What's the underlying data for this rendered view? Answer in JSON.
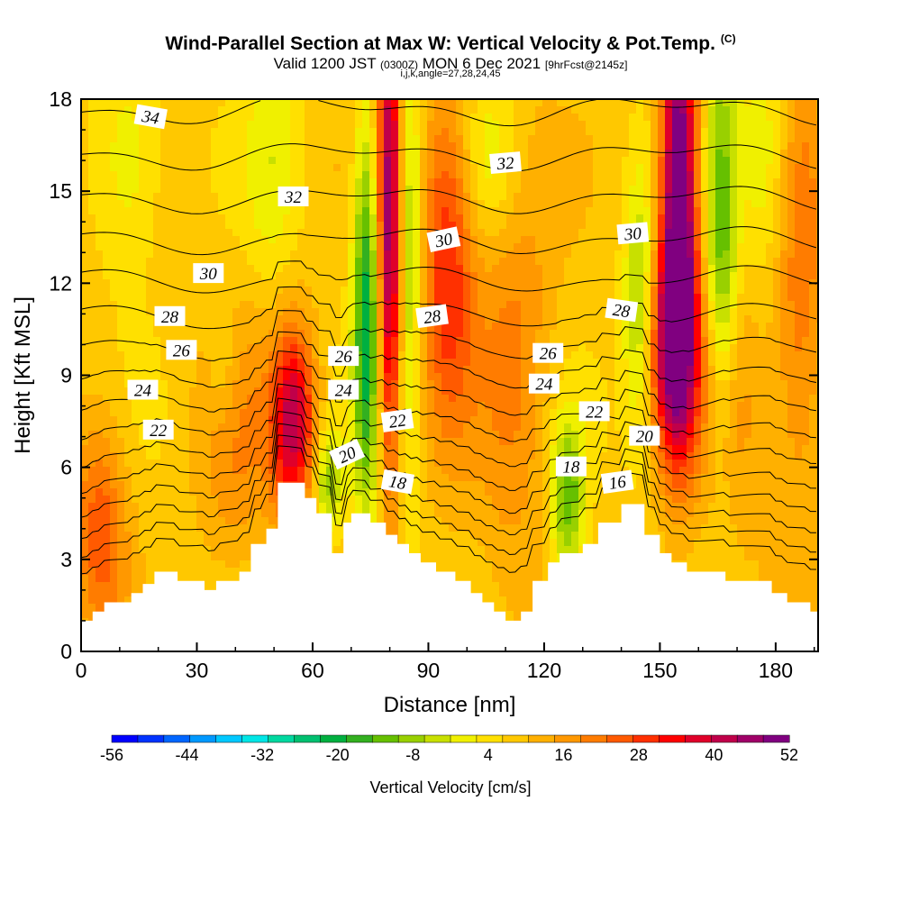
{
  "header": {
    "title_main": "Wind-Parallel Section at Max W: Vertical Velocity & Pot.Temp.",
    "title_mark": "(C)",
    "valid_prefix": "Valid 1200 JST",
    "valid_utc": "(0300Z)",
    "valid_date": "MON 6 Dec 2021",
    "valid_fcst": "[9hrFcst@2145z]",
    "ijk_line": "i,j,k,angle=27,28,24,45"
  },
  "chart_data": {
    "type": "heatmap",
    "xlabel": "Distance [nm]",
    "ylabel": "Height [Kft MSL]",
    "xlim": [
      0,
      191
    ],
    "ylim": [
      0,
      18
    ],
    "x_ticks": [
      "0",
      "30",
      "60",
      "90",
      "120",
      "150",
      "180"
    ],
    "y_ticks": [
      "0",
      "3",
      "6",
      "9",
      "12",
      "15",
      "18"
    ],
    "colorbar": {
      "title": "Vertical Velocity [cm/s]",
      "tick_labels": [
        "-56",
        "-44",
        "-32",
        "-20",
        "-8",
        "4",
        "16",
        "28",
        "40",
        "52"
      ],
      "range": [
        -56,
        52
      ],
      "colors": [
        "#0000ff",
        "#0033ff",
        "#0066ff",
        "#0099ff",
        "#00c8ff",
        "#00e6e6",
        "#00d8a0",
        "#00c070",
        "#00b040",
        "#33b020",
        "#66c000",
        "#99d000",
        "#c8e000",
        "#f0f000",
        "#ffe000",
        "#ffc800",
        "#ffb000",
        "#ff9800",
        "#ff7c00",
        "#ff5a00",
        "#ff3000",
        "#ff0000",
        "#e0002a",
        "#c0004a",
        "#a00068",
        "#800080"
      ]
    },
    "terrain_kft": [
      [
        0,
        1.0
      ],
      [
        3,
        1.0
      ],
      [
        3,
        1.3
      ],
      [
        6,
        1.3
      ],
      [
        6,
        1.6
      ],
      [
        13,
        1.6
      ],
      [
        13,
        1.9
      ],
      [
        16,
        1.9
      ],
      [
        16,
        2.2
      ],
      [
        19,
        2.2
      ],
      [
        19,
        2.6
      ],
      [
        25,
        2.6
      ],
      [
        25,
        2.3
      ],
      [
        32,
        2.3
      ],
      [
        32,
        2.0
      ],
      [
        35,
        2.0
      ],
      [
        35,
        2.3
      ],
      [
        41,
        2.3
      ],
      [
        41,
        2.6
      ],
      [
        44,
        2.6
      ],
      [
        44,
        3.5
      ],
      [
        48,
        3.5
      ],
      [
        48,
        4.0
      ],
      [
        51,
        4.0
      ],
      [
        51,
        5.5
      ],
      [
        55,
        5.5
      ],
      [
        58,
        5.5
      ],
      [
        58,
        5.0
      ],
      [
        61,
        5.0
      ],
      [
        61,
        4.5
      ],
      [
        65,
        4.5
      ],
      [
        65,
        3.2
      ],
      [
        68,
        3.2
      ],
      [
        68,
        4.2
      ],
      [
        70,
        4.2
      ],
      [
        70,
        4.5
      ],
      [
        75,
        4.5
      ],
      [
        75,
        4.2
      ],
      [
        79,
        4.2
      ],
      [
        79,
        3.8
      ],
      [
        82,
        3.8
      ],
      [
        82,
        3.5
      ],
      [
        85,
        3.5
      ],
      [
        85,
        3.2
      ],
      [
        88,
        3.2
      ],
      [
        88,
        2.9
      ],
      [
        92,
        2.9
      ],
      [
        92,
        2.6
      ],
      [
        97,
        2.6
      ],
      [
        97,
        2.3
      ],
      [
        101,
        2.3
      ],
      [
        101,
        1.9
      ],
      [
        104,
        1.9
      ],
      [
        104,
        1.6
      ],
      [
        107,
        1.6
      ],
      [
        107,
        1.3
      ],
      [
        110,
        1.3
      ],
      [
        110,
        1.0
      ],
      [
        114,
        1.0
      ],
      [
        114,
        1.3
      ],
      [
        117,
        1.3
      ],
      [
        117,
        2.3
      ],
      [
        121,
        2.3
      ],
      [
        121,
        2.9
      ],
      [
        124,
        2.9
      ],
      [
        124,
        3.2
      ],
      [
        130,
        3.2
      ],
      [
        130,
        3.5
      ],
      [
        134,
        3.5
      ],
      [
        134,
        4.2
      ],
      [
        140,
        4.2
      ],
      [
        140,
        4.8
      ],
      [
        146,
        4.8
      ],
      [
        146,
        3.8
      ],
      [
        150,
        3.8
      ],
      [
        150,
        3.2
      ],
      [
        153,
        3.2
      ],
      [
        153,
        2.9
      ],
      [
        157,
        2.9
      ],
      [
        157,
        2.6
      ],
      [
        167,
        2.6
      ],
      [
        167,
        2.3
      ],
      [
        179,
        2.3
      ],
      [
        179,
        1.9
      ],
      [
        183,
        1.9
      ],
      [
        183,
        1.6
      ],
      [
        189,
        1.6
      ],
      [
        189,
        1.3
      ],
      [
        191,
        1.3
      ]
    ],
    "isentrope_labels": [
      {
        "text": "34",
        "x": 18,
        "y": 17.4,
        "angle": 10
      },
      {
        "text": "32",
        "x": 55,
        "y": 14.8,
        "angle": 0
      },
      {
        "text": "32",
        "x": 110,
        "y": 15.9,
        "angle": -5
      },
      {
        "text": "30",
        "x": 33,
        "y": 12.3,
        "angle": 0
      },
      {
        "text": "30",
        "x": 94,
        "y": 13.4,
        "angle": -12
      },
      {
        "text": "30",
        "x": 143,
        "y": 13.6,
        "angle": -5
      },
      {
        "text": "28",
        "x": 23,
        "y": 10.9,
        "angle": 0
      },
      {
        "text": "28",
        "x": 91,
        "y": 10.9,
        "angle": -8
      },
      {
        "text": "28",
        "x": 140,
        "y": 11.1,
        "angle": 8
      },
      {
        "text": "26",
        "x": 26,
        "y": 9.8,
        "angle": 0
      },
      {
        "text": "26",
        "x": 68,
        "y": 9.6,
        "angle": 0
      },
      {
        "text": "26",
        "x": 121,
        "y": 9.7,
        "angle": 0
      },
      {
        "text": "24",
        "x": 16,
        "y": 8.5,
        "angle": 0
      },
      {
        "text": "24",
        "x": 68,
        "y": 8.5,
        "angle": 0
      },
      {
        "text": "24",
        "x": 120,
        "y": 8.7,
        "angle": 0
      },
      {
        "text": "22",
        "x": 20,
        "y": 7.2,
        "angle": 0
      },
      {
        "text": "22",
        "x": 82,
        "y": 7.5,
        "angle": -8
      },
      {
        "text": "22",
        "x": 133,
        "y": 7.8,
        "angle": 0
      },
      {
        "text": "20",
        "x": 69,
        "y": 6.4,
        "angle": -25
      },
      {
        "text": "20",
        "x": 146,
        "y": 7.0,
        "angle": 0
      },
      {
        "text": "18",
        "x": 82,
        "y": 5.5,
        "angle": 10
      },
      {
        "text": "18",
        "x": 127,
        "y": 6.0,
        "angle": 0
      },
      {
        "text": "16",
        "x": 139,
        "y": 5.5,
        "angle": -8
      }
    ],
    "updrafts": [
      {
        "x": 5,
        "y": 4.0,
        "sx": 5,
        "sy": 2.5,
        "w": 18
      },
      {
        "x": 40,
        "y": 7.0,
        "sx": 7,
        "sy": 3.0,
        "w": 10
      },
      {
        "x": 55,
        "y": 7.5,
        "sx": 4,
        "sy": 2.2,
        "w": 34
      },
      {
        "x": 80,
        "y": 14.0,
        "sx": 2.3,
        "sy": 6.0,
        "w": 40
      },
      {
        "x": 95,
        "y": 13.0,
        "sx": 5,
        "sy": 4.0,
        "w": 24
      },
      {
        "x": 112,
        "y": 9.5,
        "sx": 7,
        "sy": 5.0,
        "w": 12
      },
      {
        "x": 155,
        "y": 15.0,
        "sx": 3.2,
        "sy": 5.0,
        "w": 50
      },
      {
        "x": 153,
        "y": 10.0,
        "sx": 5,
        "sy": 2.5,
        "w": 30
      },
      {
        "x": 168,
        "y": 8.0,
        "sx": 6,
        "sy": 3.0,
        "w": 12
      },
      {
        "x": 186,
        "y": 12.0,
        "sx": 5,
        "sy": 6.0,
        "w": 14
      }
    ],
    "downdrafts": [
      {
        "x": 74,
        "y": 11.0,
        "sx": 2.5,
        "sy": 4.5,
        "w": -30
      },
      {
        "x": 85,
        "y": 13.0,
        "sx": 2.3,
        "sy": 5.0,
        "w": -18
      },
      {
        "x": 64,
        "y": 5.5,
        "sx": 2.5,
        "sy": 1.2,
        "w": -16
      },
      {
        "x": 126,
        "y": 5.0,
        "sx": 3.0,
        "sy": 1.8,
        "w": -22
      },
      {
        "x": 145,
        "y": 11.0,
        "sx": 3.0,
        "sy": 3.0,
        "w": -20
      },
      {
        "x": 166,
        "y": 13.0,
        "sx": 3.0,
        "sy": 5.0,
        "w": -22
      },
      {
        "x": 12,
        "y": 16.0,
        "sx": 6,
        "sy": 2.5,
        "w": -10
      },
      {
        "x": 50,
        "y": 16.0,
        "sx": 5,
        "sy": 3.0,
        "w": -8
      },
      {
        "x": 106,
        "y": 16.0,
        "sx": 6,
        "sy": 2.0,
        "w": -10
      },
      {
        "x": 178,
        "y": 16.0,
        "sx": 5,
        "sy": 3.0,
        "w": -12
      },
      {
        "x": 37,
        "y": 9.0,
        "sx": 3,
        "sy": 1.5,
        "w": -8
      }
    ]
  }
}
